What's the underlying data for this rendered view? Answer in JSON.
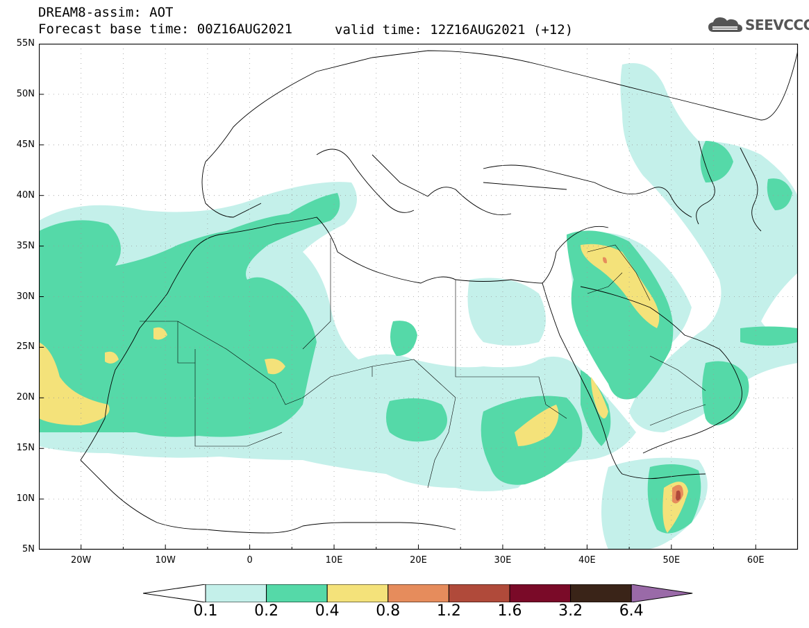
{
  "header": {
    "line1": "DREAM8-assim: AOT",
    "line2": "Forecast base time: 00Z16AUG2021",
    "valid": "valid time: 12Z16AUG2021 (+12)"
  },
  "logo": {
    "text": "SEEVCCC",
    "icon": "cloud-icon"
  },
  "axes": {
    "lat_labels": [
      "55N",
      "50N",
      "45N",
      "40N",
      "35N",
      "30N",
      "25N",
      "20N",
      "15N",
      "10N",
      "5N"
    ],
    "lon_labels": [
      "20W",
      "10W",
      "0",
      "10E",
      "20E",
      "30E",
      "40E",
      "50E",
      "60E"
    ]
  },
  "colorbar": {
    "labels": [
      "0.1",
      "0.2",
      "0.4",
      "0.8",
      "1.2",
      "1.6",
      "3.2",
      "6.4"
    ],
    "colors": [
      "#c4f0ea",
      "#55d9a8",
      "#f4e27a",
      "#e68c5c",
      "#b04a3a",
      "#7a0a28",
      "#3a2418",
      "#9a6aa8"
    ]
  },
  "colors": {
    "aot_0_1": "#c4f0ea",
    "aot_0_2": "#55d9a8",
    "aot_0_4": "#f4e27a",
    "aot_0_8": "#e68c5c",
    "aot_1_2": "#b04a3a"
  }
}
